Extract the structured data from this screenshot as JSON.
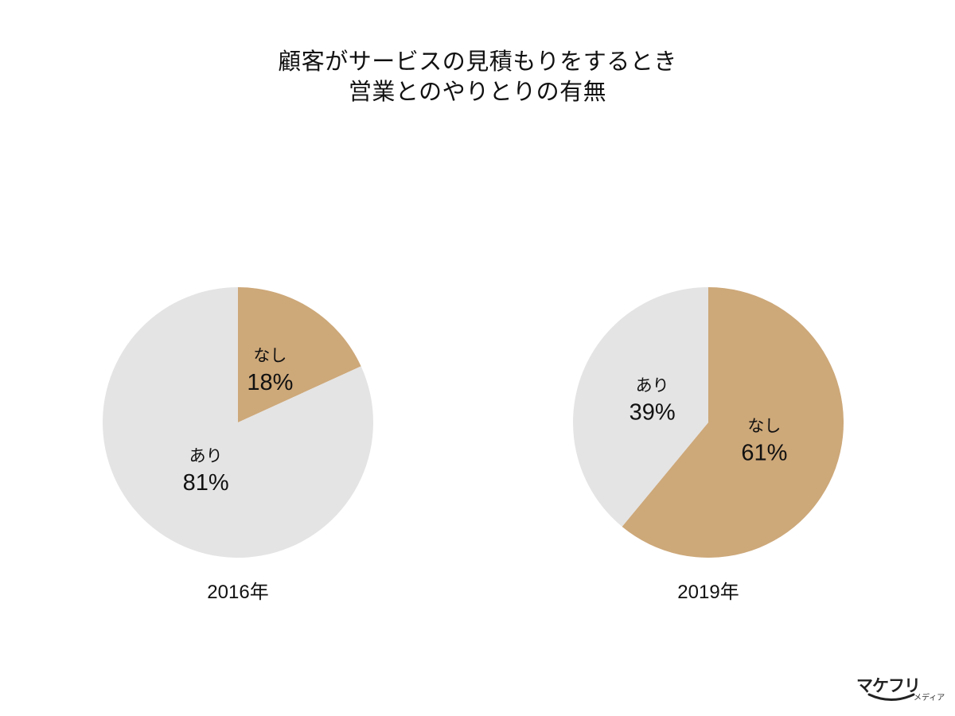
{
  "title": {
    "line1": "顧客がサービスの見積もりをするとき",
    "line2": "営業とのやりとりの有無"
  },
  "colors": {
    "nashi": "#CDA879",
    "ari": "#E4E4E4",
    "text": "#111111"
  },
  "chart_data": [
    {
      "type": "pie",
      "caption": "2016年",
      "slices": [
        {
          "label": "なし",
          "value_text": "18%",
          "value": 18,
          "color": "#CDA879"
        },
        {
          "label": "あり",
          "value_text": "81%",
          "value": 81,
          "color": "#E4E4E4"
        }
      ]
    },
    {
      "type": "pie",
      "caption": "2019年",
      "slices": [
        {
          "label": "なし",
          "value_text": "61%",
          "value": 61,
          "color": "#CDA879"
        },
        {
          "label": "あり",
          "value_text": "39%",
          "value": 39,
          "color": "#E4E4E4"
        }
      ]
    }
  ],
  "logo": {
    "main": "マケフリ",
    "sub": "メディア"
  }
}
